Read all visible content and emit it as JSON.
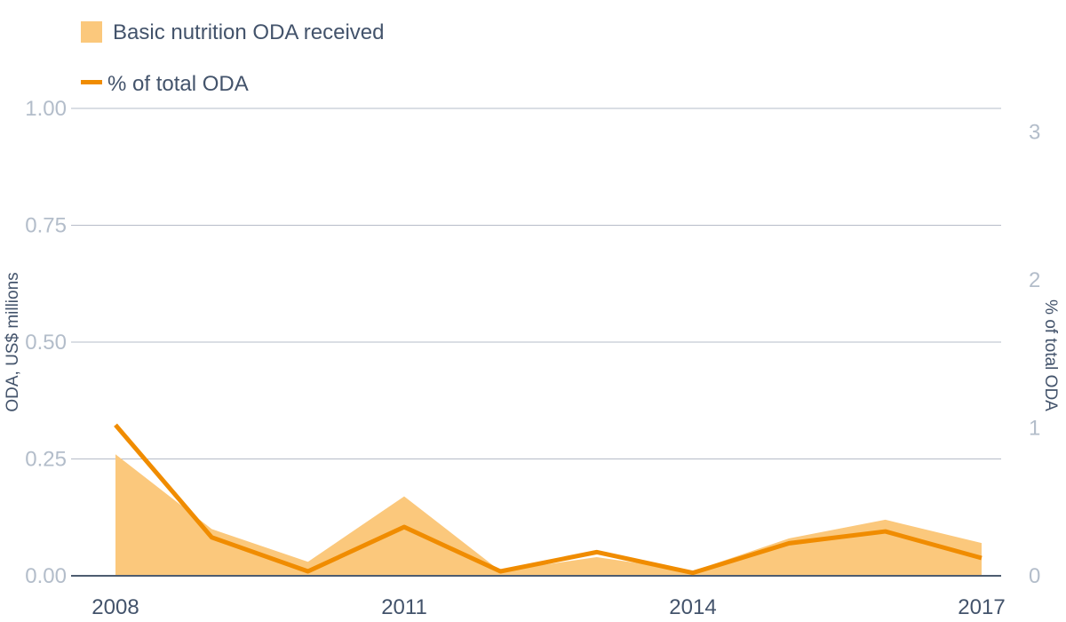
{
  "legend": {
    "area_label": "Basic nutrition ODA received",
    "line_label": "% of total ODA"
  },
  "colors": {
    "area": "#fbc87c",
    "line": "#f08c00",
    "gridline": "#b6bcc8",
    "baseline": "#4d5c70",
    "tick_muted": "#b3bdca",
    "text_dark": "#43536b"
  },
  "chart_data": {
    "type": "area",
    "x": [
      2008,
      2009,
      2010,
      2011,
      2012,
      2013,
      2014,
      2015,
      2016,
      2017
    ],
    "x_tick_labels": [
      "2008",
      "2011",
      "2014",
      "2017"
    ],
    "series": [
      {
        "name": "Basic nutrition ODA received",
        "type": "area",
        "axis": "left",
        "values": [
          0.26,
          0.1,
          0.03,
          0.17,
          0.01,
          0.04,
          0.01,
          0.08,
          0.12,
          0.07
        ]
      },
      {
        "name": "% of total ODA",
        "type": "line",
        "axis": "right",
        "values": [
          1.02,
          0.26,
          0.03,
          0.33,
          0.03,
          0.16,
          0.02,
          0.22,
          0.3,
          0.12
        ]
      }
    ],
    "left_axis": {
      "label": "ODA, US$ millions",
      "ylim": [
        0,
        1
      ],
      "ticks": [
        "0.00",
        "0.25",
        "0.50",
        "0.75",
        "1.00"
      ]
    },
    "right_axis": {
      "label": "% of total ODA",
      "ylim": [
        0,
        3.16
      ],
      "ticks": [
        "0",
        "1",
        "2",
        "3"
      ]
    },
    "grid": true,
    "legend_position": "top-left"
  }
}
